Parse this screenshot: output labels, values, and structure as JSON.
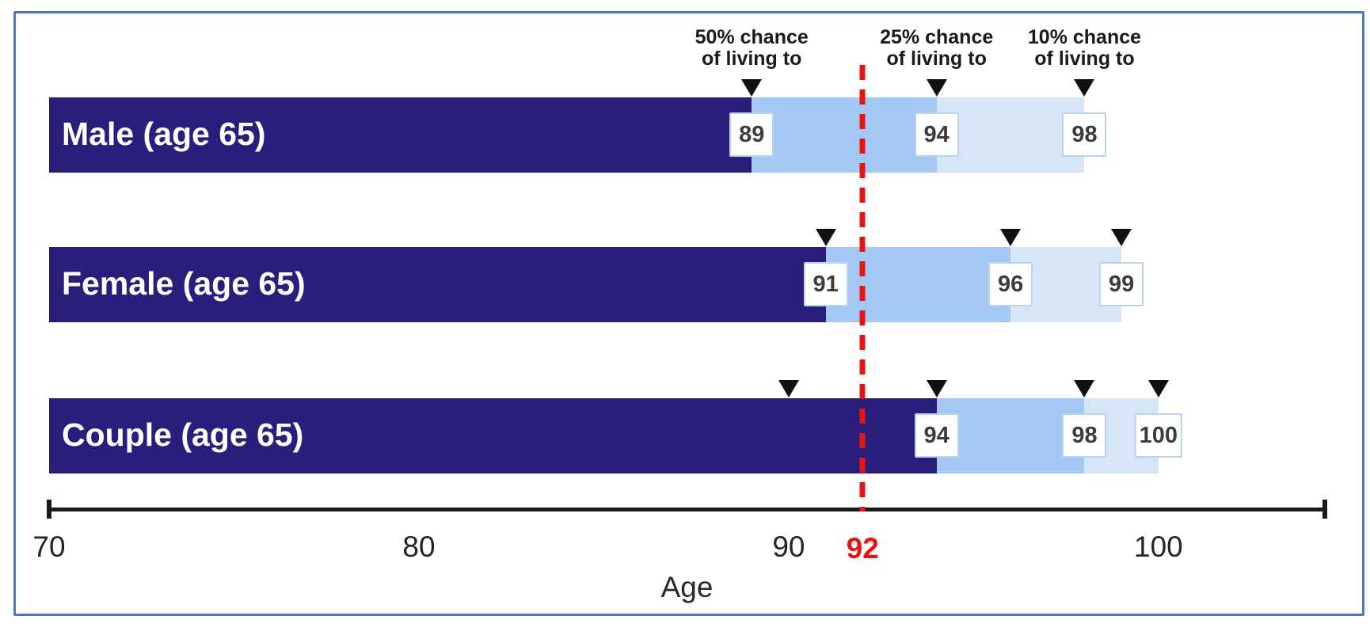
{
  "chart_data": {
    "type": "bar",
    "title": "",
    "xlabel": "Age",
    "axis": {
      "min": 70,
      "max": 104.5,
      "ticks": [
        70,
        80,
        90,
        100
      ],
      "grid": false
    },
    "reference_line": {
      "value": 92,
      "label": "92",
      "color": "#e81414",
      "style": "dashed"
    },
    "header_labels": [
      {
        "line1": "50% chance",
        "line2": "of living to",
        "anchor_age": 89
      },
      {
        "line1": "25% chance",
        "line2": "of living to",
        "anchor_age": 94
      },
      {
        "line1": "10% chance",
        "line2": "of living to",
        "anchor_age": 98
      }
    ],
    "categories": [
      "Male (age 65)",
      "Female (age 65)",
      "Couple (age 65)"
    ],
    "series": [
      {
        "name": "50% chance of living to",
        "values": [
          89,
          91,
          94
        ]
      },
      {
        "name": "25% chance of living to",
        "values": [
          94,
          96,
          98
        ]
      },
      {
        "name": "10% chance of living to",
        "values": [
          98,
          99,
          100
        ]
      }
    ],
    "extra_markers": [
      {
        "category": "Couple (age 65)",
        "age": 90
      }
    ],
    "colors": {
      "bar_50": "#2a1e7d",
      "bar_25": "#a2c8f3",
      "bar_10": "#d6e6f6",
      "marker": "#111111",
      "reference": "#e81414",
      "frame_border": "#4e78bd",
      "value_box_border": "#b9d4ee",
      "value_text": "#3c3c3c",
      "axis": "#1a1a1a",
      "bar_label_text": "#ffffff"
    }
  }
}
